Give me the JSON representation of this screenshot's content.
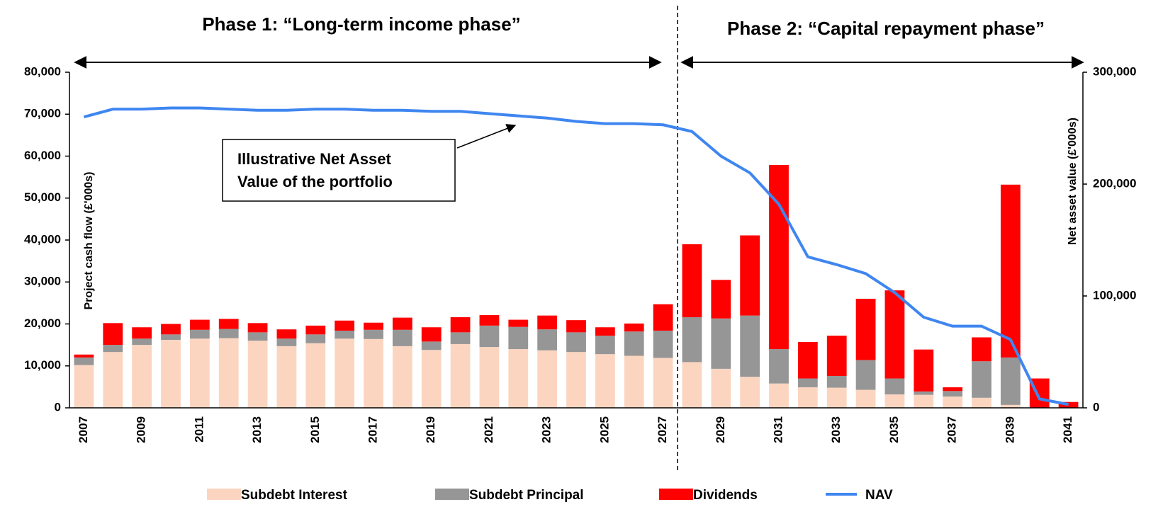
{
  "chart_data": {
    "type": "bar",
    "stacked": true,
    "annotations": {
      "phase1": "Phase 1: “Long-term income phase”",
      "phase2": "Phase 2: “Capital repayment phase”",
      "nav_note": [
        "Illustrative Net Asset",
        "Value of the portfolio"
      ]
    },
    "ylabel": "Project cash flow (£'000s)",
    "y2label": "Net asset value (£'000s)",
    "categories": [
      "2007",
      null,
      "2009",
      null,
      "2011",
      null,
      "2013",
      null,
      "2015",
      null,
      "2017",
      null,
      "2019",
      null,
      "2021",
      null,
      "2023",
      null,
      "2025",
      null,
      "2027",
      null,
      "2029",
      null,
      "2031",
      null,
      "2033",
      null,
      "2035",
      null,
      "2037",
      null,
      "2039",
      null,
      "2041"
    ],
    "series": [
      {
        "name": "Subdebt Interest",
        "color": "#fcd5c0",
        "values": [
          10200,
          13300,
          15000,
          16200,
          16500,
          16600,
          16000,
          14700,
          15400,
          16500,
          16400,
          14700,
          13800,
          15200,
          14500,
          14000,
          13700,
          13300,
          12800,
          12400,
          11900,
          10900,
          9300,
          7400,
          5800,
          4900,
          4800,
          4300,
          3200,
          3100,
          2700,
          2400,
          700,
          0,
          0
        ]
      },
      {
        "name": "Subdebt Principal",
        "color": "#969696",
        "values": [
          1800,
          1700,
          1500,
          1300,
          2100,
          2200,
          2000,
          1800,
          2100,
          1900,
          2200,
          3900,
          2000,
          2800,
          5100,
          5300,
          5000,
          4700,
          4400,
          5800,
          6500,
          10700,
          12000,
          14600,
          8200,
          2100,
          2800,
          7100,
          3800,
          800,
          1300,
          8700,
          11300,
          0,
          0
        ]
      },
      {
        "name": "Dividends",
        "color": "#ff0000",
        "values": [
          700,
          5200,
          2700,
          2500,
          2400,
          2400,
          2200,
          2200,
          2100,
          2400,
          1700,
          2900,
          3400,
          3600,
          2500,
          1700,
          3300,
          2900,
          2000,
          1900,
          6300,
          17400,
          9200,
          19100,
          43900,
          8700,
          9600,
          14600,
          21000,
          10000,
          900,
          5700,
          41200,
          7000,
          1400
        ]
      },
      {
        "name": "NAV",
        "color": "#3f86f0",
        "type": "line",
        "axis": "y2",
        "values": [
          260000,
          267000,
          267000,
          268000,
          268000,
          267000,
          266000,
          266000,
          267000,
          267000,
          266000,
          266000,
          265000,
          265000,
          263000,
          261000,
          259000,
          256000,
          254000,
          254000,
          253000,
          247000,
          225000,
          210000,
          182000,
          135000,
          128000,
          120000,
          103000,
          81000,
          73000,
          73000,
          61000,
          8000,
          3000
        ]
      }
    ],
    "ylim": [
      0,
      80000
    ],
    "yticks": [
      0,
      {
        "value": 10000,
        "label": "10,000"
      },
      {
        "value": 20000,
        "label": "20,000"
      },
      {
        "value": 30000,
        "label": "30,000"
      },
      {
        "value": 40000,
        "label": "40,000"
      },
      {
        "value": 50000,
        "label": "50,000"
      },
      {
        "value": 60000,
        "label": "60,000"
      },
      {
        "value": 70000,
        "label": "70,000"
      },
      {
        "value": 80000,
        "label": "80,000"
      }
    ],
    "y2lim": [
      0,
      300000
    ],
    "y2ticks": [
      0,
      {
        "value": 100000,
        "label": "100,000"
      },
      {
        "value": 200000,
        "label": "200,000"
      },
      {
        "value": 300000,
        "label": "300,000"
      }
    ],
    "legend": "bottom",
    "grid": false
  }
}
